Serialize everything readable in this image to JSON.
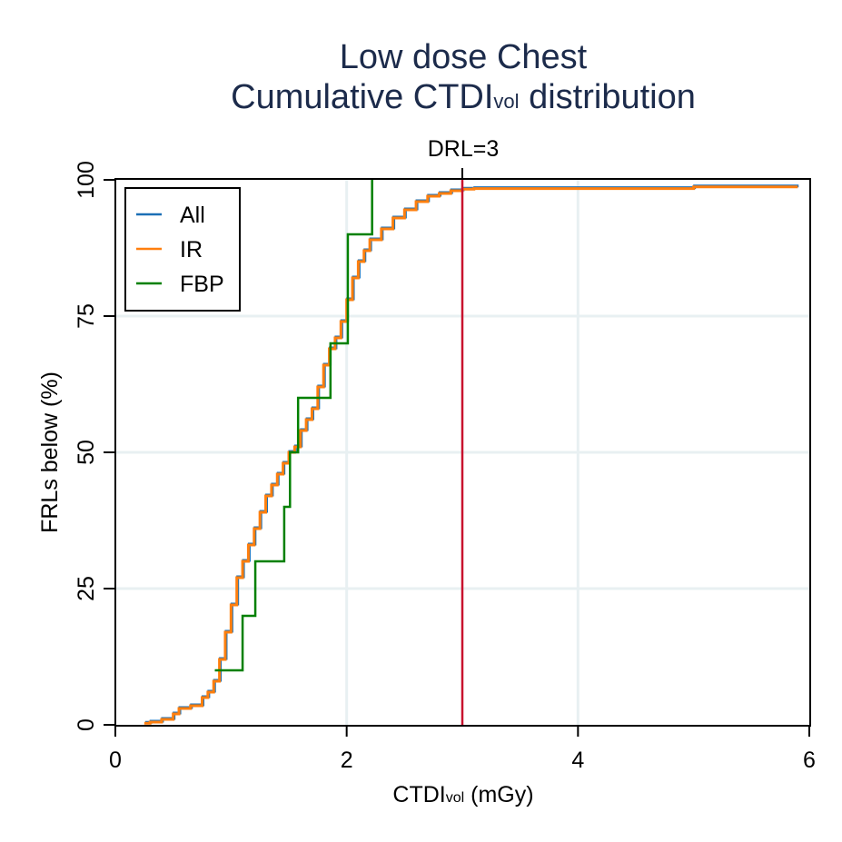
{
  "chart_data": {
    "type": "line",
    "title_line1": "Low dose Chest",
    "title_line2_main": "Cumulative CTDI",
    "title_line2_sub": "vol",
    "title_line2_end": " distribution",
    "xlabel_main": "CTDI",
    "xlabel_sub": "vol",
    "xlabel_end": " (mGy)",
    "ylabel": "FRLs below (%)",
    "xlim": [
      0,
      6
    ],
    "ylim": [
      0,
      100
    ],
    "xticks": [
      0,
      2,
      4,
      6
    ],
    "yticks": [
      0,
      25,
      50,
      75,
      100
    ],
    "grid": true,
    "legend_position": "top-left",
    "reference_line": {
      "x": 3,
      "label": "DRL=3",
      "color": "#c8102e"
    },
    "series": [
      {
        "name": "All",
        "color": "#1a6fb5",
        "step": true,
        "points": [
          [
            0.25,
            0.3
          ],
          [
            0.3,
            0.5
          ],
          [
            0.4,
            1
          ],
          [
            0.5,
            2
          ],
          [
            0.55,
            3
          ],
          [
            0.65,
            3.5
          ],
          [
            0.75,
            5
          ],
          [
            0.8,
            6
          ],
          [
            0.85,
            8
          ],
          [
            0.9,
            12
          ],
          [
            0.95,
            17
          ],
          [
            1.0,
            22
          ],
          [
            1.05,
            27
          ],
          [
            1.1,
            30
          ],
          [
            1.15,
            33
          ],
          [
            1.2,
            36
          ],
          [
            1.25,
            39
          ],
          [
            1.3,
            42
          ],
          [
            1.35,
            44
          ],
          [
            1.4,
            46
          ],
          [
            1.45,
            48
          ],
          [
            1.5,
            50
          ],
          [
            1.55,
            51
          ],
          [
            1.6,
            54
          ],
          [
            1.65,
            56
          ],
          [
            1.7,
            58
          ],
          [
            1.75,
            62
          ],
          [
            1.8,
            66
          ],
          [
            1.85,
            69
          ],
          [
            1.9,
            71
          ],
          [
            1.95,
            74
          ],
          [
            2.0,
            78
          ],
          [
            2.05,
            82
          ],
          [
            2.1,
            85
          ],
          [
            2.15,
            87
          ],
          [
            2.2,
            89
          ],
          [
            2.3,
            91
          ],
          [
            2.4,
            93
          ],
          [
            2.5,
            94.5
          ],
          [
            2.6,
            96
          ],
          [
            2.7,
            97
          ],
          [
            2.8,
            97.5
          ],
          [
            2.9,
            98
          ],
          [
            3.0,
            98.3
          ],
          [
            3.1,
            98.4
          ],
          [
            5.0,
            98.4
          ],
          [
            5.0,
            98.7
          ],
          [
            5.9,
            98.7
          ]
        ]
      },
      {
        "name": "IR",
        "color": "#ff7f0e",
        "step": true,
        "points": [
          [
            0.25,
            0.3
          ],
          [
            0.3,
            0.5
          ],
          [
            0.4,
            1
          ],
          [
            0.5,
            2
          ],
          [
            0.55,
            3
          ],
          [
            0.65,
            3.5
          ],
          [
            0.75,
            5
          ],
          [
            0.8,
            6
          ],
          [
            0.85,
            8
          ],
          [
            0.9,
            12
          ],
          [
            0.95,
            17
          ],
          [
            1.0,
            22
          ],
          [
            1.05,
            27
          ],
          [
            1.1,
            30
          ],
          [
            1.15,
            33
          ],
          [
            1.2,
            36
          ],
          [
            1.25,
            39
          ],
          [
            1.3,
            42
          ],
          [
            1.35,
            44
          ],
          [
            1.4,
            46
          ],
          [
            1.45,
            48
          ],
          [
            1.5,
            50
          ],
          [
            1.55,
            51
          ],
          [
            1.6,
            54
          ],
          [
            1.65,
            56
          ],
          [
            1.7,
            58
          ],
          [
            1.75,
            62
          ],
          [
            1.8,
            66
          ],
          [
            1.85,
            69
          ],
          [
            1.9,
            71
          ],
          [
            1.95,
            74
          ],
          [
            2.0,
            78
          ],
          [
            2.05,
            82
          ],
          [
            2.1,
            85
          ],
          [
            2.15,
            87
          ],
          [
            2.2,
            89
          ],
          [
            2.3,
            91
          ],
          [
            2.4,
            93
          ],
          [
            2.5,
            94.5
          ],
          [
            2.6,
            96
          ],
          [
            2.7,
            97
          ],
          [
            2.8,
            97.5
          ],
          [
            2.9,
            98
          ],
          [
            3.0,
            98.3
          ],
          [
            3.1,
            98.4
          ],
          [
            5.0,
            98.4
          ],
          [
            5.0,
            98.7
          ],
          [
            5.9,
            98.7
          ]
        ]
      },
      {
        "name": "FBP",
        "color": "#008000",
        "step": true,
        "points": [
          [
            0.86,
            10
          ],
          [
            1.1,
            20
          ],
          [
            1.21,
            30
          ],
          [
            1.46,
            40
          ],
          [
            1.51,
            50
          ],
          [
            1.58,
            60
          ],
          [
            1.86,
            70
          ],
          [
            2.01,
            90
          ],
          [
            2.22,
            100
          ]
        ]
      }
    ]
  }
}
